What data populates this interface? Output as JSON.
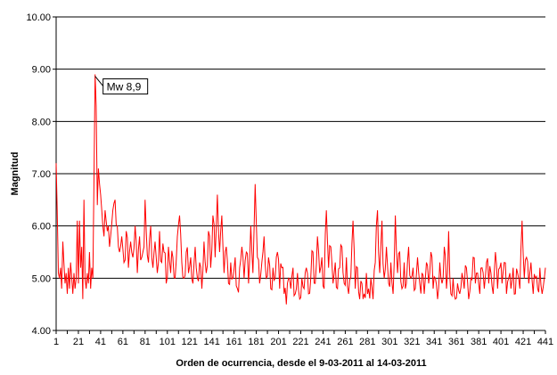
{
  "chart_data": {
    "type": "line",
    "xlabel": "Orden de ocurrencia, desde el 9-03-2011 al 14-03-2011",
    "ylabel": "Magnitud",
    "xlim": [
      1,
      441
    ],
    "ylim": [
      4.0,
      10.0
    ],
    "y_ticks": [
      "4.00",
      "5.00",
      "6.00",
      "7.00",
      "8.00",
      "9.00",
      "10.00"
    ],
    "x_ticks": [
      "1",
      "21",
      "41",
      "61",
      "81",
      "101",
      "121",
      "141",
      "161",
      "181",
      "201",
      "221",
      "241",
      "261",
      "281",
      "301",
      "321",
      "341",
      "361",
      "381",
      "401",
      "421",
      "441"
    ],
    "grid": "horizontal",
    "legend": "none",
    "series_color": "#ff0000",
    "annotation": {
      "text": "Mw 8,9",
      "x": 36,
      "y": 8.9
    },
    "keypoints": [
      [
        1,
        7.2
      ],
      [
        2,
        6.3
      ],
      [
        3,
        5.1
      ],
      [
        4,
        5.0
      ],
      [
        5,
        5.2
      ],
      [
        6,
        4.8
      ],
      [
        7,
        5.7
      ],
      [
        8,
        5.3
      ],
      [
        9,
        4.9
      ],
      [
        10,
        5.1
      ],
      [
        11,
        4.7
      ],
      [
        12,
        5.2
      ],
      [
        13,
        4.8
      ],
      [
        14,
        5.3
      ],
      [
        15,
        5.0
      ],
      [
        16,
        4.7
      ],
      [
        17,
        5.1
      ],
      [
        18,
        4.8
      ],
      [
        19,
        5.0
      ],
      [
        20,
        6.1
      ],
      [
        21,
        4.9
      ],
      [
        22,
        6.1
      ],
      [
        23,
        5.2
      ],
      [
        24,
        5.6
      ],
      [
        25,
        4.6
      ],
      [
        26,
        6.5
      ],
      [
        27,
        5.0
      ],
      [
        28,
        4.8
      ],
      [
        29,
        5.1
      ],
      [
        30,
        4.9
      ],
      [
        31,
        5.5
      ],
      [
        32,
        4.8
      ],
      [
        33,
        5.2
      ],
      [
        34,
        5.0
      ],
      [
        35,
        6.8
      ],
      [
        36,
        8.9
      ],
      [
        37,
        8.3
      ],
      [
        38,
        6.4
      ],
      [
        39,
        7.1
      ],
      [
        40,
        6.8
      ],
      [
        41,
        6.6
      ],
      [
        42,
        6.3
      ],
      [
        43,
        6.0
      ],
      [
        44,
        5.8
      ],
      [
        45,
        6.3
      ],
      [
        46,
        6.1
      ],
      [
        47,
        5.9
      ],
      [
        48,
        6.0
      ],
      [
        49,
        5.6
      ],
      [
        50,
        5.8
      ],
      [
        52,
        6.3
      ],
      [
        54,
        6.5
      ],
      [
        56,
        6.0
      ],
      [
        58,
        5.5
      ],
      [
        60,
        5.8
      ],
      [
        62,
        5.3
      ],
      [
        64,
        5.9
      ],
      [
        66,
        5.2
      ],
      [
        68,
        5.7
      ],
      [
        70,
        5.4
      ],
      [
        72,
        6.0
      ],
      [
        74,
        5.1
      ],
      [
        76,
        5.8
      ],
      [
        78,
        5.4
      ],
      [
        80,
        5.6
      ],
      [
        81,
        6.5
      ],
      [
        82,
        5.9
      ],
      [
        84,
        5.3
      ],
      [
        86,
        6.0
      ],
      [
        88,
        5.2
      ],
      [
        90,
        5.7
      ],
      [
        92,
        5.1
      ],
      [
        94,
        5.9
      ],
      [
        96,
        5.3
      ],
      [
        98,
        5.5
      ],
      [
        100,
        4.9
      ],
      [
        102,
        5.6
      ],
      [
        104,
        5.1
      ],
      [
        106,
        5.4
      ],
      [
        108,
        5.0
      ],
      [
        110,
        5.8
      ],
      [
        112,
        6.2
      ],
      [
        114,
        5.3
      ],
      [
        116,
        5.0
      ],
      [
        118,
        5.5
      ],
      [
        120,
        5.1
      ],
      [
        122,
        5.4
      ],
      [
        124,
        4.9
      ],
      [
        126,
        5.6
      ],
      [
        128,
        5.0
      ],
      [
        130,
        5.3
      ],
      [
        132,
        4.8
      ],
      [
        134,
        5.7
      ],
      [
        136,
        5.1
      ],
      [
        138,
        5.9
      ],
      [
        140,
        5.2
      ],
      [
        142,
        6.2
      ],
      [
        144,
        5.4
      ],
      [
        146,
        6.6
      ],
      [
        148,
        5.5
      ],
      [
        150,
        6.2
      ],
      [
        152,
        5.1
      ],
      [
        154,
        5.6
      ],
      [
        156,
        4.9
      ],
      [
        158,
        5.3
      ],
      [
        160,
        5.0
      ],
      [
        162,
        5.4
      ],
      [
        164,
        4.8
      ],
      [
        166,
        5.2
      ],
      [
        168,
        5.6
      ],
      [
        170,
        5.0
      ],
      [
        172,
        5.5
      ],
      [
        174,
        4.9
      ],
      [
        176,
        6.0
      ],
      [
        178,
        5.1
      ],
      [
        180,
        6.8
      ],
      [
        182,
        5.4
      ],
      [
        184,
        4.9
      ],
      [
        186,
        5.3
      ],
      [
        188,
        5.8
      ],
      [
        190,
        5.0
      ],
      [
        192,
        5.4
      ],
      [
        194,
        4.8
      ],
      [
        196,
        5.2
      ],
      [
        198,
        5.0
      ],
      [
        200,
        5.5
      ],
      [
        202,
        4.8
      ],
      [
        204,
        5.2
      ],
      [
        206,
        4.7
      ],
      [
        208,
        4.5
      ],
      [
        210,
        5.0
      ],
      [
        212,
        4.8
      ],
      [
        214,
        5.2
      ],
      [
        216,
        4.7
      ],
      [
        218,
        5.1
      ],
      [
        220,
        4.6
      ],
      [
        222,
        5.0
      ],
      [
        224,
        4.8
      ],
      [
        226,
        5.2
      ],
      [
        228,
        4.7
      ],
      [
        230,
        5.0
      ],
      [
        232,
        5.5
      ],
      [
        234,
        4.9
      ],
      [
        236,
        5.8
      ],
      [
        238,
        5.1
      ],
      [
        240,
        5.4
      ],
      [
        242,
        4.8
      ],
      [
        244,
        6.3
      ],
      [
        246,
        5.2
      ],
      [
        248,
        5.6
      ],
      [
        250,
        4.9
      ],
      [
        252,
        5.3
      ],
      [
        254,
        4.8
      ],
      [
        256,
        5.2
      ],
      [
        258,
        5.6
      ],
      [
        260,
        4.9
      ],
      [
        262,
        5.4
      ],
      [
        264,
        4.7
      ],
      [
        266,
        5.0
      ],
      [
        268,
        6.1
      ],
      [
        270,
        4.8
      ],
      [
        272,
        5.2
      ],
      [
        274,
        4.6
      ],
      [
        276,
        4.9
      ],
      [
        278,
        4.7
      ],
      [
        280,
        5.1
      ],
      [
        282,
        4.8
      ],
      [
        284,
        5.0
      ],
      [
        286,
        4.6
      ],
      [
        288,
        5.3
      ],
      [
        290,
        6.3
      ],
      [
        292,
        5.1
      ],
      [
        294,
        6.1
      ],
      [
        296,
        5.0
      ],
      [
        298,
        5.6
      ],
      [
        300,
        4.9
      ],
      [
        302,
        5.3
      ],
      [
        304,
        4.7
      ],
      [
        306,
        6.2
      ],
      [
        308,
        5.1
      ],
      [
        310,
        5.5
      ],
      [
        312,
        4.8
      ],
      [
        314,
        5.3
      ],
      [
        316,
        4.9
      ],
      [
        318,
        5.6
      ],
      [
        320,
        5.0
      ],
      [
        322,
        5.2
      ],
      [
        324,
        4.8
      ],
      [
        326,
        5.4
      ],
      [
        328,
        4.9
      ],
      [
        330,
        5.1
      ],
      [
        332,
        4.7
      ],
      [
        334,
        5.3
      ],
      [
        336,
        4.9
      ],
      [
        338,
        5.5
      ],
      [
        340,
        4.8
      ],
      [
        342,
        5.0
      ],
      [
        344,
        4.6
      ],
      [
        346,
        5.3
      ],
      [
        348,
        4.9
      ],
      [
        350,
        5.6
      ],
      [
        352,
        4.8
      ],
      [
        354,
        5.9
      ],
      [
        356,
        4.7
      ],
      [
        358,
        5.0
      ],
      [
        360,
        4.6
      ],
      [
        362,
        4.9
      ],
      [
        364,
        4.7
      ],
      [
        366,
        5.1
      ],
      [
        368,
        4.8
      ],
      [
        370,
        5.2
      ],
      [
        372,
        4.6
      ],
      [
        374,
        5.0
      ],
      [
        376,
        5.4
      ],
      [
        378,
        4.9
      ],
      [
        380,
        5.1
      ],
      [
        382,
        4.7
      ],
      [
        384,
        5.2
      ],
      [
        386,
        4.8
      ],
      [
        388,
        5.3
      ],
      [
        390,
        4.9
      ],
      [
        392,
        5.1
      ],
      [
        394,
        4.7
      ],
      [
        396,
        5.5
      ],
      [
        398,
        4.8
      ],
      [
        400,
        5.2
      ],
      [
        402,
        4.9
      ],
      [
        404,
        5.3
      ],
      [
        406,
        4.7
      ],
      [
        408,
        5.0
      ],
      [
        410,
        4.8
      ],
      [
        412,
        5.2
      ],
      [
        414,
        4.7
      ],
      [
        416,
        5.1
      ],
      [
        418,
        4.8
      ],
      [
        420,
        6.1
      ],
      [
        422,
        5.0
      ],
      [
        424,
        5.4
      ],
      [
        426,
        4.9
      ],
      [
        428,
        5.3
      ],
      [
        430,
        4.7
      ],
      [
        432,
        5.0
      ],
      [
        434,
        4.8
      ],
      [
        436,
        5.2
      ],
      [
        438,
        4.7
      ],
      [
        440,
        5.0
      ],
      [
        441,
        5.2
      ]
    ]
  }
}
